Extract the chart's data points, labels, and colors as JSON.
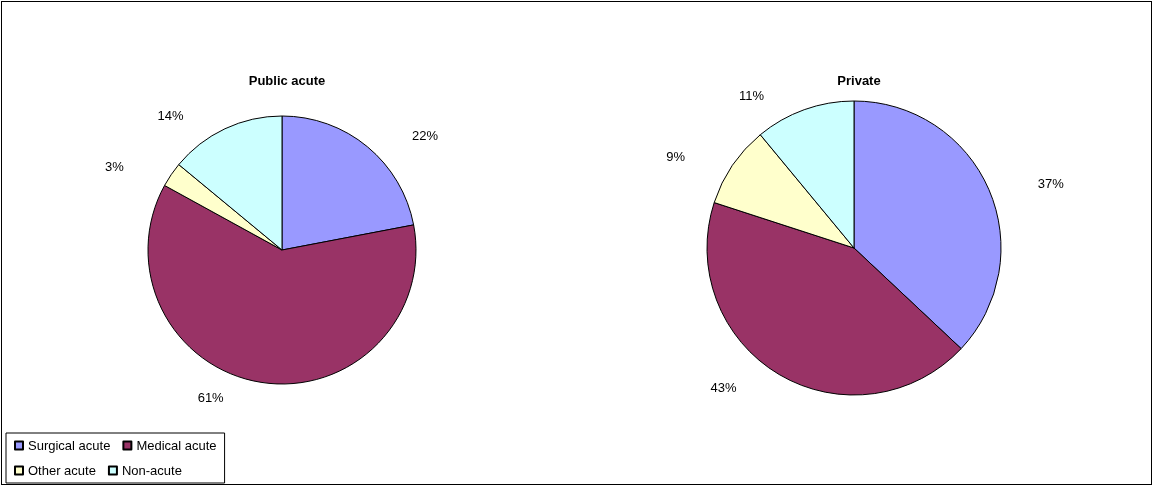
{
  "chart_data": [
    {
      "type": "pie",
      "title": "Public acute",
      "categories": [
        "Surgical acute",
        "Medical acute",
        "Other acute",
        "Non-acute"
      ],
      "values": [
        22,
        61,
        3,
        14
      ],
      "value_labels": [
        "22%",
        "61%",
        "3%",
        "14%"
      ],
      "colors": [
        "#9999ff",
        "#993366",
        "#ffffcc",
        "#ccffff"
      ],
      "legend": "bottom left"
    },
    {
      "type": "pie",
      "title": "Private",
      "categories": [
        null,
        null,
        null,
        null
      ],
      "values": [
        37,
        43,
        9,
        11
      ],
      "value_labels": [
        "37%",
        "43%",
        "9%",
        "11%"
      ],
      "colors": [
        "#9999ff",
        "#993366",
        "#ffffcc",
        "#ccffff"
      ]
    }
  ]
}
